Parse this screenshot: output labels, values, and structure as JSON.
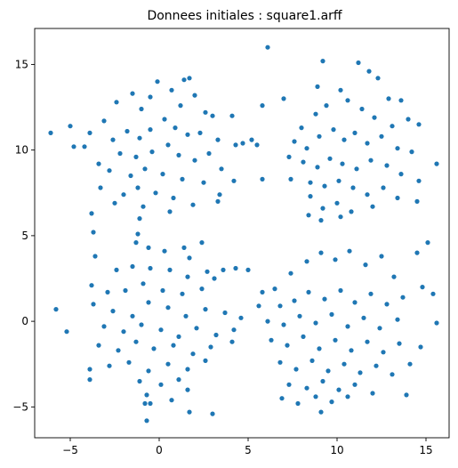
{
  "chart_data": {
    "type": "scatter",
    "title": "Donnees initiales : square1.arff",
    "xlabel": "",
    "ylabel": "",
    "xlim": [
      -7,
      16.3
    ],
    "ylim": [
      -6.8,
      17.1
    ],
    "xticks": [
      -5,
      0,
      5,
      10,
      15
    ],
    "yticks": [
      -5,
      0,
      5,
      10,
      15
    ],
    "xtick_labels": [
      "−5",
      "0",
      "5",
      "10",
      "15"
    ],
    "ytick_labels": [
      "−5",
      "0",
      "5",
      "10",
      "15"
    ],
    "grid": false,
    "legend": "none",
    "marker_color": "#1f77b4",
    "clusters": [
      {
        "center": [
          0,
          10
        ],
        "approx_count": 250
      },
      {
        "center": [
          10,
          10
        ],
        "approx_count": 250
      },
      {
        "center": [
          0,
          0
        ],
        "approx_count": 250
      },
      {
        "center": [
          10,
          0
        ],
        "approx_count": 250
      }
    ],
    "points": [
      [
        6.1,
        16.0
      ],
      [
        9.2,
        15.2
      ],
      [
        11.2,
        15.1
      ],
      [
        11.8,
        14.6
      ],
      [
        12.3,
        14.2
      ],
      [
        1.4,
        14.1
      ],
      [
        1.7,
        14.2
      ],
      [
        -0.1,
        14.0
      ],
      [
        -1.5,
        13.3
      ],
      [
        0.7,
        13.5
      ],
      [
        2.0,
        13.2
      ],
      [
        -0.5,
        13.1
      ],
      [
        -2.4,
        12.8
      ],
      [
        -1.0,
        12.4
      ],
      [
        1.2,
        12.6
      ],
      [
        2.6,
        12.2
      ],
      [
        3.0,
        12.0
      ],
      [
        4.1,
        12.0
      ],
      [
        5.8,
        12.6
      ],
      [
        7.0,
        13.0
      ],
      [
        8.9,
        13.7
      ],
      [
        10.2,
        13.5
      ],
      [
        12.9,
        13.0
      ],
      [
        13.6,
        12.9
      ],
      [
        14.0,
        11.8
      ],
      [
        14.6,
        11.5
      ],
      [
        -3.9,
        11.0
      ],
      [
        -6.1,
        11.0
      ],
      [
        -5.0,
        11.4
      ],
      [
        -3.1,
        11.7
      ],
      [
        -4.2,
        10.2
      ],
      [
        -4.8,
        10.2
      ],
      [
        -2.6,
        10.6
      ],
      [
        -1.8,
        11.1
      ],
      [
        -1.1,
        10.7
      ],
      [
        -0.5,
        11.2
      ],
      [
        0.3,
        11.8
      ],
      [
        0.9,
        11.3
      ],
      [
        1.6,
        10.9
      ],
      [
        2.3,
        11.0
      ],
      [
        3.3,
        10.6
      ],
      [
        4.3,
        10.3
      ],
      [
        4.7,
        10.4
      ],
      [
        -2.2,
        9.8
      ],
      [
        -1.3,
        9.6
      ],
      [
        -0.4,
        9.9
      ],
      [
        0.5,
        10.3
      ],
      [
        1.1,
        9.7
      ],
      [
        2.0,
        9.4
      ],
      [
        2.8,
        9.8
      ],
      [
        3.5,
        8.9
      ],
      [
        -3.4,
        9.2
      ],
      [
        -2.8,
        8.8
      ],
      [
        -1.6,
        8.5
      ],
      [
        -0.8,
        8.9
      ],
      [
        0.2,
        8.6
      ],
      [
        1.3,
        8.3
      ],
      [
        2.5,
        8.1
      ],
      [
        -3.3,
        7.8
      ],
      [
        -2.0,
        7.4
      ],
      [
        -1.2,
        7.8
      ],
      [
        -0.2,
        7.5
      ],
      [
        0.8,
        7.2
      ],
      [
        1.9,
        6.8
      ],
      [
        -2.5,
        6.9
      ],
      [
        -0.9,
        6.7
      ],
      [
        0.6,
        6.4
      ],
      [
        -3.8,
        6.3
      ],
      [
        -3.7,
        5.2
      ],
      [
        -1.1,
        6.0
      ],
      [
        -1.2,
        5.1
      ],
      [
        3.3,
        7.0
      ],
      [
        3.4,
        7.4
      ],
      [
        4.2,
        8.2
      ],
      [
        5.8,
        8.3
      ],
      [
        5.5,
        10.3
      ],
      [
        5.2,
        10.6
      ],
      [
        8.0,
        11.3
      ],
      [
        8.8,
        12.1
      ],
      [
        9.4,
        12.6
      ],
      [
        10.6,
        12.9
      ],
      [
        11.4,
        12.4
      ],
      [
        12.1,
        11.9
      ],
      [
        13.1,
        11.4
      ],
      [
        7.6,
        10.5
      ],
      [
        8.3,
        10.1
      ],
      [
        9.0,
        10.8
      ],
      [
        9.8,
        11.2
      ],
      [
        10.4,
        10.6
      ],
      [
        11.0,
        11.0
      ],
      [
        11.7,
        10.4
      ],
      [
        12.5,
        10.8
      ],
      [
        13.4,
        10.1
      ],
      [
        14.2,
        9.9
      ],
      [
        15.6,
        9.2
      ],
      [
        7.3,
        9.6
      ],
      [
        8.1,
        9.3
      ],
      [
        8.9,
        9.0
      ],
      [
        9.6,
        9.5
      ],
      [
        10.3,
        9.2
      ],
      [
        11.1,
        8.9
      ],
      [
        11.9,
        9.4
      ],
      [
        12.8,
        9.1
      ],
      [
        13.6,
        8.6
      ],
      [
        14.6,
        8.2
      ],
      [
        7.4,
        8.3
      ],
      [
        8.5,
        8.1
      ],
      [
        9.3,
        7.9
      ],
      [
        10.1,
        8.2
      ],
      [
        10.9,
        7.8
      ],
      [
        11.7,
        7.4
      ],
      [
        12.6,
        7.8
      ],
      [
        13.4,
        7.2
      ],
      [
        14.5,
        7.0
      ],
      [
        8.5,
        7.3
      ],
      [
        9.2,
        6.6
      ],
      [
        10.0,
        6.9
      ],
      [
        10.8,
        6.4
      ],
      [
        12.0,
        6.7
      ],
      [
        14.5,
        4.0
      ],
      [
        15.1,
        4.6
      ],
      [
        8.4,
        6.2
      ],
      [
        9.1,
        5.9
      ],
      [
        10.2,
        6.1
      ],
      [
        -1.3,
        4.6
      ],
      [
        -0.6,
        4.3
      ],
      [
        0.3,
        4.1
      ],
      [
        1.4,
        4.3
      ],
      [
        2.4,
        4.6
      ],
      [
        1.7,
        3.7
      ],
      [
        -3.6,
        3.8
      ],
      [
        -2.4,
        3.0
      ],
      [
        -1.5,
        3.2
      ],
      [
        -0.5,
        3.1
      ],
      [
        0.6,
        3.0
      ],
      [
        1.6,
        2.6
      ],
      [
        2.7,
        2.9
      ],
      [
        3.6,
        3.0
      ],
      [
        4.3,
        3.1
      ],
      [
        -3.8,
        2.1
      ],
      [
        -2.9,
        1.7
      ],
      [
        -1.9,
        1.8
      ],
      [
        -0.9,
        2.2
      ],
      [
        0.2,
        1.8
      ],
      [
        1.3,
        1.6
      ],
      [
        2.4,
        1.9
      ],
      [
        3.1,
        2.5
      ],
      [
        -3.7,
        1.0
      ],
      [
        -2.6,
        0.6
      ],
      [
        -1.5,
        0.3
      ],
      [
        -0.6,
        1.1
      ],
      [
        0.5,
        0.8
      ],
      [
        1.5,
        0.3
      ],
      [
        2.6,
        0.7
      ],
      [
        3.7,
        0.5
      ],
      [
        4.6,
        0.2
      ],
      [
        -5.8,
        0.7
      ],
      [
        -3.1,
        -0.3
      ],
      [
        -2.0,
        -0.6
      ],
      [
        -1.0,
        -0.2
      ],
      [
        0.1,
        -0.5
      ],
      [
        1.1,
        -0.9
      ],
      [
        2.1,
        -0.4
      ],
      [
        3.2,
        -0.8
      ],
      [
        4.2,
        -0.5
      ],
      [
        -5.2,
        -0.6
      ],
      [
        -3.4,
        -1.4
      ],
      [
        -2.3,
        -1.7
      ],
      [
        -1.3,
        -1.2
      ],
      [
        -0.3,
        -1.6
      ],
      [
        0.8,
        -1.4
      ],
      [
        1.9,
        -1.9
      ],
      [
        2.9,
        -1.5
      ],
      [
        4.1,
        -1.2
      ],
      [
        -2.8,
        -2.6
      ],
      [
        -1.7,
        -2.4
      ],
      [
        -0.6,
        -2.9
      ],
      [
        0.5,
        -2.5
      ],
      [
        1.6,
        -2.8
      ],
      [
        2.6,
        -2.3
      ],
      [
        -3.9,
        -2.8
      ],
      [
        -3.9,
        -3.4
      ],
      [
        -1.1,
        -3.5
      ],
      [
        0.1,
        -3.7
      ],
      [
        1.1,
        -3.4
      ],
      [
        1.6,
        -4.0
      ],
      [
        -0.7,
        -4.3
      ],
      [
        0.7,
        -4.6
      ],
      [
        -0.8,
        -4.8
      ],
      [
        -0.5,
        -4.8
      ],
      [
        1.7,
        -5.3
      ],
      [
        3.0,
        -5.4
      ],
      [
        -0.7,
        -5.8
      ],
      [
        5.0,
        3.0
      ],
      [
        5.8,
        1.7
      ],
      [
        5.6,
        0.9
      ],
      [
        6.5,
        1.9
      ],
      [
        7.4,
        2.8
      ],
      [
        8.3,
        3.5
      ],
      [
        9.1,
        4.0
      ],
      [
        9.9,
        3.6
      ],
      [
        10.7,
        4.1
      ],
      [
        11.6,
        3.3
      ],
      [
        12.5,
        3.8
      ],
      [
        13.2,
        2.6
      ],
      [
        6.8,
        0.9
      ],
      [
        7.6,
        1.2
      ],
      [
        8.4,
        1.7
      ],
      [
        9.3,
        1.3
      ],
      [
        10.2,
        1.8
      ],
      [
        11.0,
        1.1
      ],
      [
        11.9,
        1.6
      ],
      [
        12.8,
        1.0
      ],
      [
        13.7,
        1.4
      ],
      [
        6.1,
        0.0
      ],
      [
        7.0,
        -0.2
      ],
      [
        7.9,
        0.3
      ],
      [
        8.8,
        -0.1
      ],
      [
        9.7,
        0.4
      ],
      [
        10.6,
        -0.3
      ],
      [
        11.5,
        0.2
      ],
      [
        12.4,
        -0.4
      ],
      [
        13.4,
        0.1
      ],
      [
        15.6,
        -0.1
      ],
      [
        6.3,
        -1.1
      ],
      [
        7.2,
        -1.4
      ],
      [
        8.1,
        -0.9
      ],
      [
        9.0,
        -1.6
      ],
      [
        9.9,
        -1.1
      ],
      [
        10.8,
        -1.7
      ],
      [
        11.7,
        -1.2
      ],
      [
        12.6,
        -1.8
      ],
      [
        13.5,
        -1.3
      ],
      [
        14.7,
        -1.5
      ],
      [
        6.8,
        -2.4
      ],
      [
        7.7,
        -2.8
      ],
      [
        8.6,
        -2.3
      ],
      [
        9.5,
        -2.9
      ],
      [
        10.4,
        -2.5
      ],
      [
        11.3,
        -3.0
      ],
      [
        12.2,
        -2.6
      ],
      [
        13.1,
        -3.1
      ],
      [
        14.1,
        -2.5
      ],
      [
        7.3,
        -3.7
      ],
      [
        8.3,
        -3.9
      ],
      [
        9.2,
        -3.5
      ],
      [
        10.1,
        -4.0
      ],
      [
        11.0,
        -3.7
      ],
      [
        12.0,
        -4.2
      ],
      [
        6.9,
        -4.5
      ],
      [
        7.8,
        -4.8
      ],
      [
        8.8,
        -4.4
      ],
      [
        9.7,
        -4.7
      ],
      [
        10.6,
        -4.4
      ],
      [
        9.1,
        -5.3
      ],
      [
        13.9,
        -4.3
      ],
      [
        15.4,
        1.6
      ],
      [
        14.8,
        2.0
      ]
    ]
  }
}
